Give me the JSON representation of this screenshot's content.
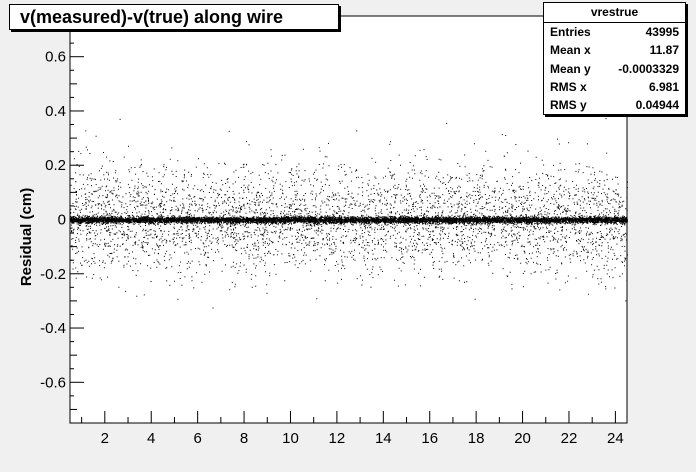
{
  "chart_data": {
    "type": "scatter",
    "title": "v(measured)-v(true) along wire",
    "xlabel": "",
    "ylabel": "Residual (cm)",
    "xlim": [
      0.5,
      24.5
    ],
    "ylim": [
      -0.75,
      0.75
    ],
    "x_ticks": [
      "2",
      "4",
      "6",
      "8",
      "10",
      "12",
      "14",
      "16",
      "18",
      "20",
      "22",
      "24"
    ],
    "y_ticks": [
      "0.6",
      "0.4",
      "0.2",
      "0",
      "-0.2",
      "-0.4",
      "-0.6"
    ],
    "grid": false,
    "marker_color": "#000000",
    "stats": {
      "name": "vrestrue",
      "rows": [
        {
          "label": "Entries",
          "value": "43995"
        },
        {
          "label": "Mean x",
          "value": "11.87"
        },
        {
          "label": "Mean y",
          "value": "-0.0003329"
        },
        {
          "label": "RMS x",
          "value": "6.981"
        },
        {
          "label": "RMS y",
          "value": "0.04944"
        }
      ]
    },
    "distribution": {
      "entries": 43995,
      "mean_x": 11.87,
      "mean_y": -0.0003329,
      "rms_x": 6.981,
      "rms_y": 0.04944
    }
  },
  "colors": {
    "canvas_background": "#f0f0f0",
    "plot_background": "#ffffff",
    "axis": "#000000"
  }
}
